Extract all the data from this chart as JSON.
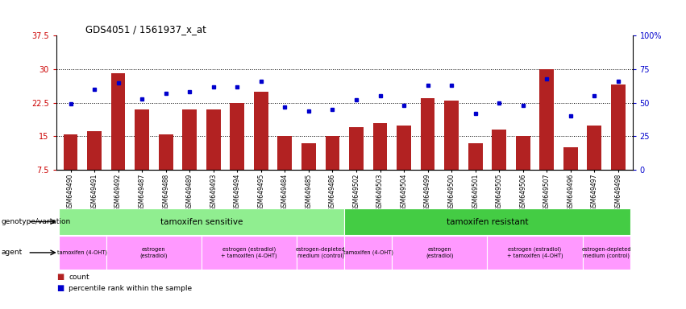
{
  "title": "GDS4051 / 1561937_x_at",
  "samples": [
    "GSM649490",
    "GSM649491",
    "GSM649492",
    "GSM649487",
    "GSM649488",
    "GSM649489",
    "GSM649493",
    "GSM649494",
    "GSM649495",
    "GSM649484",
    "GSM649485",
    "GSM649486",
    "GSM649502",
    "GSM649503",
    "GSM649504",
    "GSM649499",
    "GSM649500",
    "GSM649501",
    "GSM649505",
    "GSM649506",
    "GSM649507",
    "GSM649496",
    "GSM649497",
    "GSM649498"
  ],
  "bar_values": [
    15.5,
    16.2,
    29.0,
    21.0,
    15.5,
    21.0,
    21.0,
    22.5,
    25.0,
    15.0,
    13.5,
    15.0,
    17.0,
    18.0,
    17.5,
    23.5,
    23.0,
    13.5,
    16.5,
    15.0,
    30.0,
    12.5,
    17.5,
    26.5
  ],
  "percentile_values": [
    49,
    60,
    65,
    53,
    57,
    58,
    62,
    62,
    66,
    47,
    44,
    45,
    52,
    55,
    48,
    63,
    63,
    42,
    50,
    48,
    68,
    40,
    55,
    66
  ],
  "ylim_left": [
    7.5,
    37.5
  ],
  "ylim_right": [
    0,
    100
  ],
  "yticks_left": [
    7.5,
    15.0,
    22.5,
    30.0,
    37.5
  ],
  "yticks_right": [
    0,
    25,
    50,
    75,
    100
  ],
  "ytick_labels_left": [
    "7.5",
    "15",
    "22.5",
    "30",
    "37.5"
  ],
  "ytick_labels_right": [
    "0",
    "25",
    "50",
    "75",
    "100%"
  ],
  "bar_color": "#b22222",
  "dot_color": "#0000cd",
  "background_color": "#ffffff",
  "agent_defs": [
    {
      "label": "tamoxifen (4-OHT)",
      "xstart": -0.5,
      "xend": 1.5
    },
    {
      "label": "estrogen\n(estradiol)",
      "xstart": 1.5,
      "xend": 5.5
    },
    {
      "label": "estrogen (estradiol)\n+ tamoxifen (4-OHT)",
      "xstart": 5.5,
      "xend": 9.5
    },
    {
      "label": "estrogen-depleted\nmedium (control)",
      "xstart": 9.5,
      "xend": 11.5
    },
    {
      "label": "tamoxifen (4-OHT)",
      "xstart": 11.5,
      "xend": 13.5
    },
    {
      "label": "estrogen\n(estradiol)",
      "xstart": 13.5,
      "xend": 17.5
    },
    {
      "label": "estrogen (estradiol)\n+ tamoxifen (4-OHT)",
      "xstart": 17.5,
      "xend": 21.5
    },
    {
      "label": "estrogen-depleted\nmedium (control)",
      "xstart": 21.5,
      "xend": 23.5
    }
  ],
  "geno_defs": [
    {
      "label": "tamoxifen sensitive",
      "xstart": -0.5,
      "xend": 11.5,
      "color": "#90ee90"
    },
    {
      "label": "tamoxifen resistant",
      "xstart": 11.5,
      "xend": 23.5,
      "color": "#44cc44"
    }
  ],
  "hgrid_lines": [
    15.0,
    22.5,
    30.0
  ]
}
